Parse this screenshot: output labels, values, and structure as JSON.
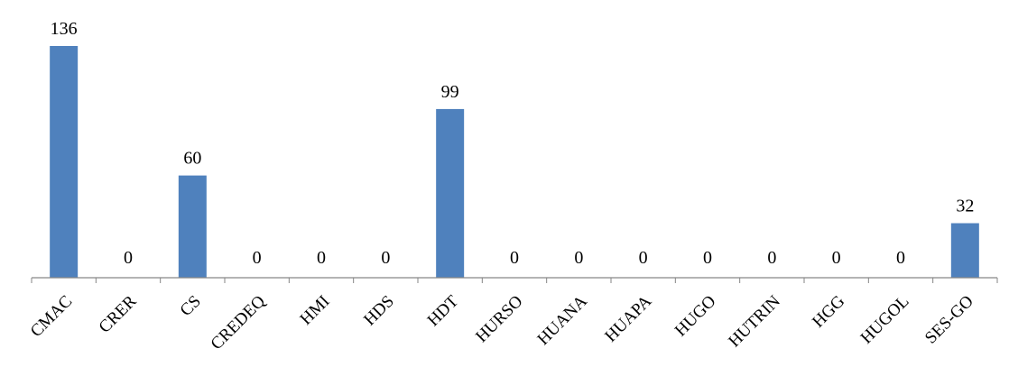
{
  "chart_data": {
    "type": "bar",
    "title": "",
    "xlabel": "",
    "ylabel": "",
    "categories": [
      "CMAC",
      "CRER",
      "CS",
      "CREDEQ",
      "HMI",
      "HDS",
      "HDT",
      "HURSO",
      "HUANA",
      "HUAPA",
      "HUGO",
      "HUTRIN",
      "HGG",
      "HUGOL",
      "SES-GO"
    ],
    "values": [
      136,
      0,
      60,
      0,
      0,
      0,
      99,
      0,
      0,
      0,
      0,
      0,
      0,
      0,
      32
    ],
    "value_labels": [
      "136",
      "0",
      "60",
      "0",
      "0",
      "0",
      "99",
      "0",
      "0",
      "0",
      "0",
      "0",
      "0",
      "0",
      "32"
    ],
    "ylim": [
      0,
      136
    ],
    "grid": false,
    "legend": "none",
    "bar_color": "#4f81bd",
    "axis_color": "#868686"
  }
}
